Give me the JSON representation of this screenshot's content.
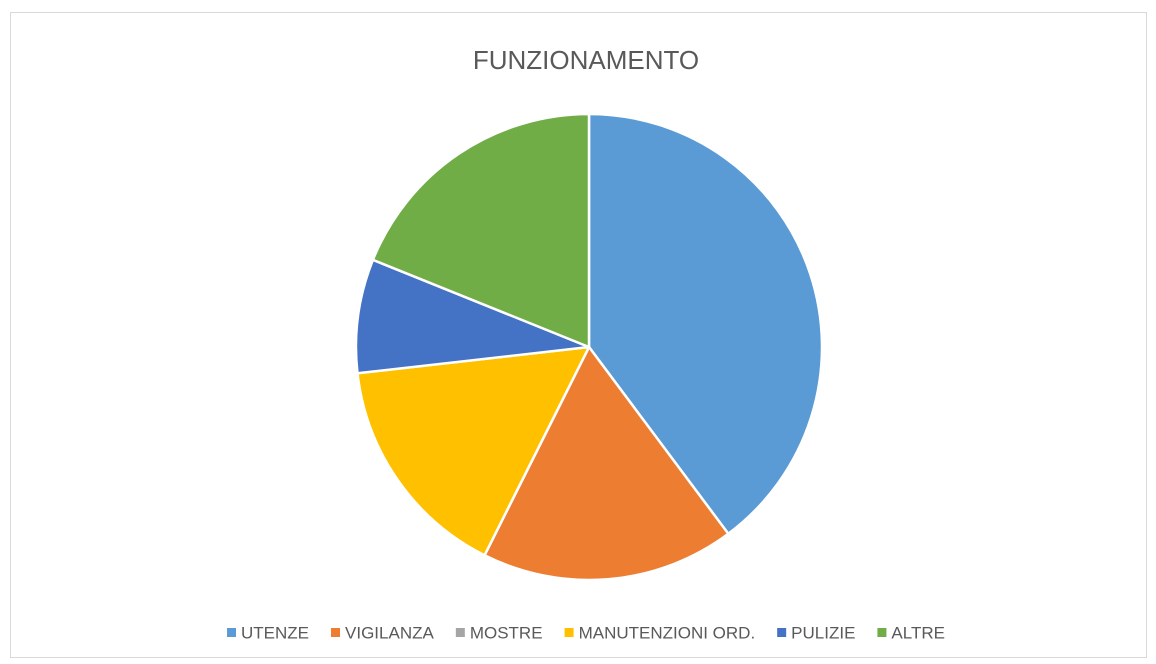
{
  "chart_data": {
    "type": "pie",
    "title": "FUNZIONAMENTO",
    "categories": [
      "UTENZE",
      "VIGILANZA",
      "MOSTRE",
      "MANUTENZIONI ORD.",
      "PULIZIE",
      "ALTRE"
    ],
    "values": [
      39.8,
      17.6,
      0,
      15.8,
      7.9,
      18.9
    ],
    "colors": [
      "#5b9bd5",
      "#ed7d31",
      "#a5a5a5",
      "#ffc000",
      "#4472c4",
      "#70ad47"
    ],
    "legend": "bottom"
  }
}
